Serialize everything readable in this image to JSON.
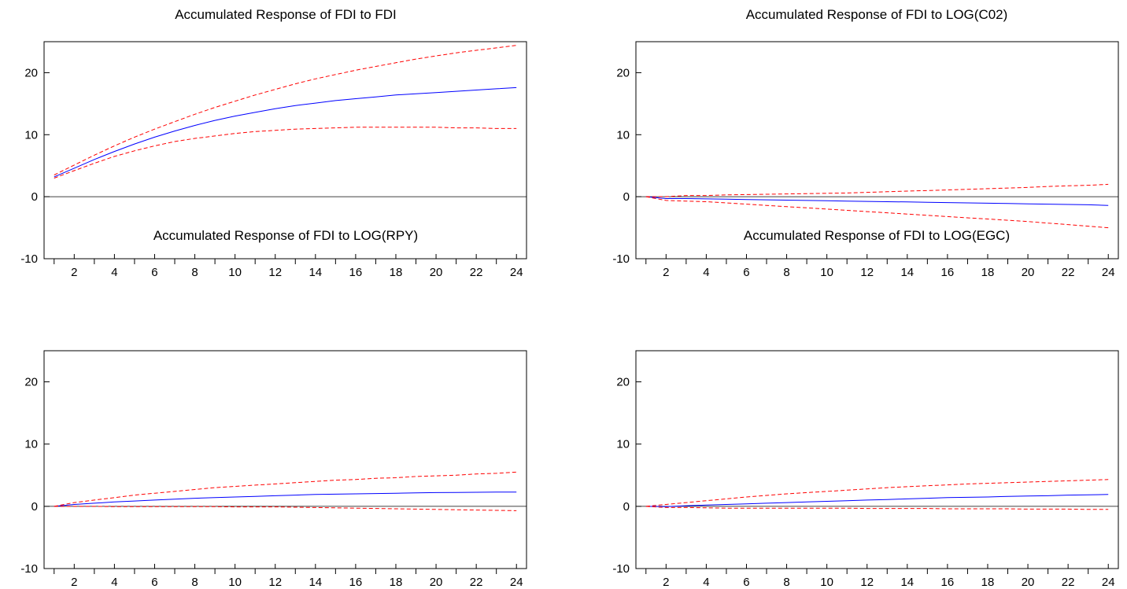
{
  "colors": {
    "response": "#0000ff",
    "band": "#ff0000",
    "zero_line": "#000000",
    "frame": "#000000"
  },
  "chart_data": [
    {
      "type": "line",
      "title": "Accumulated Response of FDI to FDI",
      "x": [
        1,
        2,
        3,
        4,
        5,
        6,
        7,
        8,
        9,
        10,
        11,
        12,
        13,
        14,
        15,
        16,
        17,
        18,
        19,
        20,
        21,
        22,
        23,
        24
      ],
      "xticks": [
        2,
        4,
        6,
        8,
        10,
        12,
        14,
        16,
        18,
        20,
        22,
        24
      ],
      "xlim": [
        0.5,
        24.5
      ],
      "ylim": [
        -10,
        25
      ],
      "yticks": [
        -10,
        0,
        10,
        20
      ],
      "series": [
        {
          "role": "response",
          "values": [
            3.2,
            4.6,
            6.0,
            7.3,
            8.5,
            9.6,
            10.6,
            11.5,
            12.3,
            13.0,
            13.6,
            14.2,
            14.7,
            15.1,
            15.5,
            15.8,
            16.1,
            16.4,
            16.6,
            16.8,
            17.0,
            17.2,
            17.4,
            17.6
          ]
        },
        {
          "role": "upper",
          "values": [
            3.5,
            5.1,
            6.7,
            8.2,
            9.6,
            10.9,
            12.1,
            13.3,
            14.4,
            15.4,
            16.4,
            17.3,
            18.2,
            19.0,
            19.7,
            20.4,
            21.0,
            21.6,
            22.2,
            22.7,
            23.2,
            23.6,
            24.0,
            24.4
          ]
        },
        {
          "role": "lower",
          "values": [
            3.0,
            4.2,
            5.4,
            6.5,
            7.4,
            8.2,
            8.9,
            9.4,
            9.8,
            10.2,
            10.5,
            10.7,
            10.9,
            11.0,
            11.1,
            11.2,
            11.2,
            11.2,
            11.2,
            11.2,
            11.1,
            11.1,
            11.0,
            11.0
          ]
        }
      ]
    },
    {
      "type": "line",
      "title": "Accumulated Response of FDI to LOG(C02)",
      "x": [
        1,
        2,
        3,
        4,
        5,
        6,
        7,
        8,
        9,
        10,
        11,
        12,
        13,
        14,
        15,
        16,
        17,
        18,
        19,
        20,
        21,
        22,
        23,
        24
      ],
      "xticks": [
        2,
        4,
        6,
        8,
        10,
        12,
        14,
        16,
        18,
        20,
        22,
        24
      ],
      "xlim": [
        0.5,
        24.5
      ],
      "ylim": [
        -10,
        25
      ],
      "yticks": [
        -10,
        0,
        10,
        20
      ],
      "series": [
        {
          "role": "response",
          "values": [
            0.0,
            -0.3,
            -0.3,
            -0.35,
            -0.4,
            -0.45,
            -0.5,
            -0.55,
            -0.6,
            -0.65,
            -0.7,
            -0.75,
            -0.8,
            -0.85,
            -0.9,
            -0.95,
            -1.0,
            -1.05,
            -1.1,
            -1.15,
            -1.2,
            -1.25,
            -1.3,
            -1.4
          ]
        },
        {
          "role": "upper",
          "values": [
            0.0,
            0.0,
            0.2,
            0.2,
            0.3,
            0.35,
            0.4,
            0.45,
            0.5,
            0.55,
            0.6,
            0.7,
            0.8,
            0.9,
            1.0,
            1.1,
            1.2,
            1.3,
            1.4,
            1.5,
            1.65,
            1.75,
            1.85,
            2.0
          ]
        },
        {
          "role": "lower",
          "values": [
            0.0,
            -0.6,
            -0.7,
            -0.8,
            -1.0,
            -1.2,
            -1.4,
            -1.6,
            -1.8,
            -2.0,
            -2.2,
            -2.4,
            -2.6,
            -2.8,
            -3.0,
            -3.2,
            -3.4,
            -3.6,
            -3.8,
            -4.0,
            -4.25,
            -4.5,
            -4.75,
            -5.0
          ]
        }
      ]
    },
    {
      "type": "line",
      "title": "Accumulated Response of FDI to LOG(RPY)",
      "x": [
        1,
        2,
        3,
        4,
        5,
        6,
        7,
        8,
        9,
        10,
        11,
        12,
        13,
        14,
        15,
        16,
        17,
        18,
        19,
        20,
        21,
        22,
        23,
        24
      ],
      "xticks": [
        2,
        4,
        6,
        8,
        10,
        12,
        14,
        16,
        18,
        20,
        22,
        24
      ],
      "xlim": [
        0.5,
        24.5
      ],
      "ylim": [
        -10,
        25
      ],
      "yticks": [
        -10,
        0,
        10,
        20
      ],
      "series": [
        {
          "role": "response",
          "values": [
            0.0,
            0.3,
            0.5,
            0.7,
            0.85,
            1.0,
            1.15,
            1.3,
            1.4,
            1.5,
            1.6,
            1.7,
            1.8,
            1.9,
            1.95,
            2.0,
            2.05,
            2.1,
            2.15,
            2.2,
            2.22,
            2.25,
            2.28,
            2.3
          ]
        },
        {
          "role": "upper",
          "values": [
            0.0,
            0.6,
            1.0,
            1.4,
            1.8,
            2.1,
            2.4,
            2.7,
            3.0,
            3.2,
            3.4,
            3.6,
            3.8,
            4.0,
            4.2,
            4.3,
            4.5,
            4.6,
            4.8,
            4.9,
            5.0,
            5.2,
            5.3,
            5.5
          ]
        },
        {
          "role": "lower",
          "values": [
            0.0,
            0.0,
            0.0,
            -0.05,
            -0.05,
            -0.05,
            -0.05,
            -0.05,
            -0.05,
            -0.1,
            -0.1,
            -0.1,
            -0.15,
            -0.2,
            -0.25,
            -0.3,
            -0.35,
            -0.4,
            -0.45,
            -0.5,
            -0.55,
            -0.6,
            -0.65,
            -0.7
          ]
        }
      ]
    },
    {
      "type": "line",
      "title": "Accumulated Response of FDI to LOG(EGC)",
      "x": [
        1,
        2,
        3,
        4,
        5,
        6,
        7,
        8,
        9,
        10,
        11,
        12,
        13,
        14,
        15,
        16,
        17,
        18,
        19,
        20,
        21,
        22,
        23,
        24
      ],
      "xticks": [
        2,
        4,
        6,
        8,
        10,
        12,
        14,
        16,
        18,
        20,
        22,
        24
      ],
      "xlim": [
        0.5,
        24.5
      ],
      "ylim": [
        -10,
        25
      ],
      "yticks": [
        -10,
        0,
        10,
        20
      ],
      "series": [
        {
          "role": "response",
          "values": [
            0.0,
            -0.05,
            0.1,
            0.2,
            0.3,
            0.4,
            0.5,
            0.6,
            0.7,
            0.8,
            0.9,
            1.0,
            1.1,
            1.2,
            1.3,
            1.4,
            1.45,
            1.5,
            1.6,
            1.65,
            1.7,
            1.8,
            1.85,
            1.9
          ]
        },
        {
          "role": "upper",
          "values": [
            0.0,
            0.3,
            0.6,
            0.9,
            1.2,
            1.5,
            1.75,
            2.0,
            2.2,
            2.4,
            2.6,
            2.8,
            3.0,
            3.15,
            3.3,
            3.45,
            3.6,
            3.7,
            3.8,
            3.9,
            4.0,
            4.1,
            4.2,
            4.3
          ]
        },
        {
          "role": "lower",
          "values": [
            0.0,
            -0.2,
            -0.2,
            -0.25,
            -0.3,
            -0.3,
            -0.3,
            -0.3,
            -0.3,
            -0.3,
            -0.3,
            -0.35,
            -0.35,
            -0.35,
            -0.35,
            -0.4,
            -0.4,
            -0.4,
            -0.4,
            -0.45,
            -0.45,
            -0.45,
            -0.5,
            -0.5
          ]
        }
      ]
    }
  ]
}
